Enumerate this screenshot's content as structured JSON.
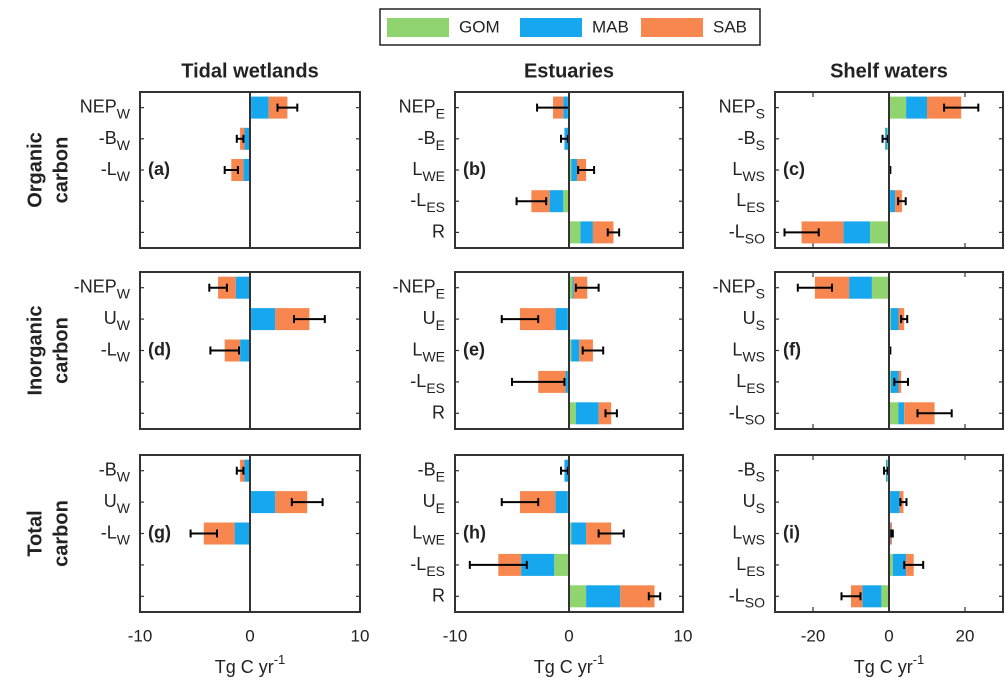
{
  "chart_data": {
    "type": "bar",
    "orientation": "horizontal",
    "series": [
      {
        "name": "GOM",
        "color": "#8fd46e"
      },
      {
        "name": "MAB",
        "color": "#17a7ee"
      },
      {
        "name": "SAB",
        "color": "#f7874e"
      }
    ],
    "columns": [
      "Tidal wetlands",
      "Estuaries",
      "Shelf waters"
    ],
    "rows": [
      [
        "Organic",
        "carbon"
      ],
      [
        "Inorganic",
        "carbon"
      ],
      [
        "Total",
        "carbon"
      ]
    ],
    "xlabel": "Tg C yr",
    "xlabel_superscript": "-1",
    "panels": [
      {
        "label": "(a)",
        "categories": [
          [
            "NEP",
            "W"
          ],
          [
            "-B",
            "W"
          ],
          [
            "-L",
            "W"
          ]
        ],
        "values": [
          [
            0.1,
            0,
            0
          ],
          [
            1.6,
            -0.5,
            -0.6
          ],
          [
            1.7,
            -0.4,
            -1.1
          ]
        ],
        "errors": [
          0.9,
          0.3,
          0.6
        ],
        "xlim": [
          -10,
          10
        ],
        "xticks": [
          -10,
          0,
          10
        ]
      },
      {
        "label": "(b)",
        "categories": [
          [
            "NEP",
            "E"
          ],
          [
            "-B",
            "E"
          ],
          [
            "L",
            "WE"
          ],
          [
            "-L",
            "ES"
          ],
          [
            "R",
            null
          ]
        ],
        "values": [
          [
            -0.1,
            0,
            0.2,
            -0.5,
            1.0
          ],
          [
            -0.4,
            -0.4,
            0.5,
            -1.2,
            1.1
          ],
          [
            -0.9,
            0,
            0.8,
            -1.6,
            1.8
          ]
        ],
        "errors": [
          1.4,
          0.3,
          0.7,
          1.3,
          0.5
        ],
        "xlim": [
          -10,
          10
        ],
        "xticks": [
          -10,
          0,
          10
        ]
      },
      {
        "label": "(c)",
        "categories": [
          [
            "NEP",
            "S"
          ],
          [
            "-B",
            "S"
          ],
          [
            "L",
            "WS"
          ],
          [
            "L",
            "ES"
          ],
          [
            "-L",
            "SO"
          ]
        ],
        "values": [
          [
            4.5,
            -0.5,
            0.05,
            0.3,
            -5
          ],
          [
            5.5,
            -0.5,
            0.1,
            1.3,
            -7
          ],
          [
            9,
            0,
            0.1,
            1.8,
            -11
          ]
        ],
        "errors": [
          4.5,
          0.7,
          0.1,
          1,
          4.5
        ],
        "xlim": [
          -30,
          30
        ],
        "xticks": [
          -20,
          0,
          20
        ]
      },
      {
        "label": "(d)",
        "categories": [
          [
            "-NEP",
            "W"
          ],
          [
            "U",
            "W"
          ],
          [
            "-L",
            "W"
          ]
        ],
        "values": [
          [
            0,
            0.1,
            0
          ],
          [
            -1.3,
            2.2,
            -0.9
          ],
          [
            -1.6,
            3.1,
            -1.4
          ]
        ],
        "errors": [
          0.8,
          1.4,
          1.3
        ],
        "xlim": [
          -10,
          10
        ],
        "xticks": [
          -10,
          0,
          10
        ]
      },
      {
        "label": "(e)",
        "categories": [
          [
            "-NEP",
            "E"
          ],
          [
            "U",
            "E"
          ],
          [
            "L",
            "WE"
          ],
          [
            "-L",
            "ES"
          ],
          [
            "R",
            null
          ]
        ],
        "values": [
          [
            0.3,
            -0.1,
            0.2,
            -0.1,
            0.6
          ],
          [
            0.1,
            -1.1,
            0.7,
            -0.2,
            2.0
          ],
          [
            1.2,
            -3.1,
            1.2,
            -2.4,
            1.1
          ]
        ],
        "errors": [
          1.0,
          1.6,
          0.9,
          2.3,
          0.5
        ],
        "xlim": [
          -10,
          10
        ],
        "xticks": [
          -10,
          0,
          10
        ]
      },
      {
        "label": "(f)",
        "categories": [
          [
            "-NEP",
            "S"
          ],
          [
            "U",
            "S"
          ],
          [
            "L",
            "WS"
          ],
          [
            "L",
            "ES"
          ],
          [
            "-L",
            "SO"
          ]
        ],
        "values": [
          [
            -4.5,
            0.5,
            0.05,
            0.5,
            2.5
          ],
          [
            -6,
            2,
            0.1,
            2,
            1.5
          ],
          [
            -9,
            1.5,
            0.1,
            0.7,
            8
          ]
        ],
        "errors": [
          4.5,
          0.8,
          0.1,
          1.8,
          4.5
        ],
        "xlim": [
          -30,
          30
        ],
        "xticks": [
          -20,
          0,
          20
        ]
      },
      {
        "label": "(g)",
        "categories": [
          [
            "-B",
            "W"
          ],
          [
            "U",
            "W"
          ],
          [
            "-L",
            "W"
          ]
        ],
        "values": [
          [
            0,
            0.1,
            0
          ],
          [
            -0.5,
            2.2,
            -1.4
          ],
          [
            -0.4,
            2.9,
            -2.8
          ]
        ],
        "errors": [
          0.3,
          1.4,
          1.2
        ],
        "xlim": [
          -10,
          10
        ],
        "xticks": [
          -10,
          0,
          10
        ]
      },
      {
        "label": "(h)",
        "categories": [
          [
            "-B",
            "E"
          ],
          [
            "U",
            "E"
          ],
          [
            "L",
            "WE"
          ],
          [
            "-L",
            "ES"
          ],
          [
            "R",
            null
          ]
        ],
        "values": [
          [
            0,
            -0.1,
            0.2,
            -1.3,
            1.5
          ],
          [
            -0.4,
            -1.1,
            1.3,
            -2.9,
            3.0
          ],
          [
            0,
            -3.1,
            2.2,
            -2.0,
            3.0
          ]
        ],
        "errors": [
          0.3,
          1.6,
          1.1,
          2.5,
          0.5
        ],
        "xlim": [
          -10,
          10
        ],
        "xticks": [
          -10,
          0,
          10
        ]
      },
      {
        "label": "(i)",
        "categories": [
          [
            "-B",
            "S"
          ],
          [
            "U",
            "S"
          ],
          [
            "L",
            "WS"
          ],
          [
            "L",
            "ES"
          ],
          [
            "-L",
            "SO"
          ]
        ],
        "values": [
          [
            -0.5,
            0.3,
            0.1,
            1,
            -2
          ],
          [
            -0.3,
            2.5,
            0.3,
            3.5,
            -5
          ],
          [
            0,
            1,
            0.4,
            2,
            -3
          ]
        ],
        "errors": [
          0.5,
          0.8,
          0.2,
          2.5,
          2.5
        ],
        "xlim": [
          -30,
          30
        ],
        "xticks": [
          -20,
          0,
          20
        ]
      }
    ]
  }
}
